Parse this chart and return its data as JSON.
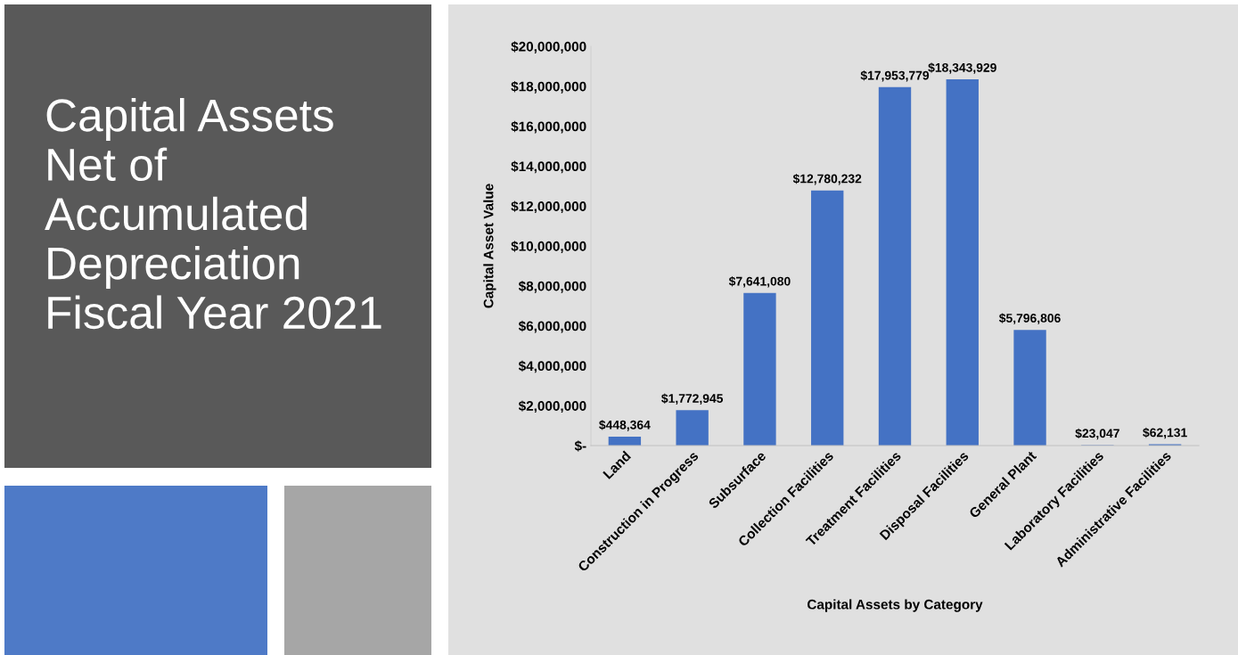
{
  "chart_data": {
    "type": "bar",
    "title": "Capital Assets\nNet of\nAccumulated\nDepreciation\nFiscal Year 2021",
    "xlabel": "Capital Assets by Category",
    "ylabel": "Capital Asset Value",
    "categories": [
      "Land",
      "Construction in Progress",
      "Subsurface",
      "Collection Facilities",
      "Treatment Facilities",
      "Disposal Facilities",
      "General Plant",
      "Laboratory Facilities",
      "Administrative Facilities"
    ],
    "values": [
      448364,
      1772945,
      7641080,
      12780232,
      17953779,
      18343929,
      5796806,
      23047,
      62131
    ],
    "value_labels": [
      "$448,364",
      "$1,772,945",
      "$7,641,080",
      "$12,780,232",
      "$17,953,779",
      "$18,343,929",
      "$5,796,806",
      "$23,047",
      "$62,131"
    ],
    "color": "#4472c4",
    "ylim": [
      0,
      20000000
    ],
    "yticks": [
      {
        "value": 0,
        "label": "$-"
      },
      {
        "value": 2000000,
        "label": "$2,000,000"
      },
      {
        "value": 4000000,
        "label": "$4,000,000"
      },
      {
        "value": 6000000,
        "label": "$6,000,000"
      },
      {
        "value": 8000000,
        "label": "$8,000,000"
      },
      {
        "value": 10000000,
        "label": "$10,000,000"
      },
      {
        "value": 12000000,
        "label": "$12,000,000"
      },
      {
        "value": 14000000,
        "label": "$14,000,000"
      },
      {
        "value": 16000000,
        "label": "$16,000,000"
      },
      {
        "value": 18000000,
        "label": "$18,000,000"
      },
      {
        "value": 20000000,
        "label": "$20,000,000"
      }
    ],
    "grid": false,
    "legend": false
  }
}
